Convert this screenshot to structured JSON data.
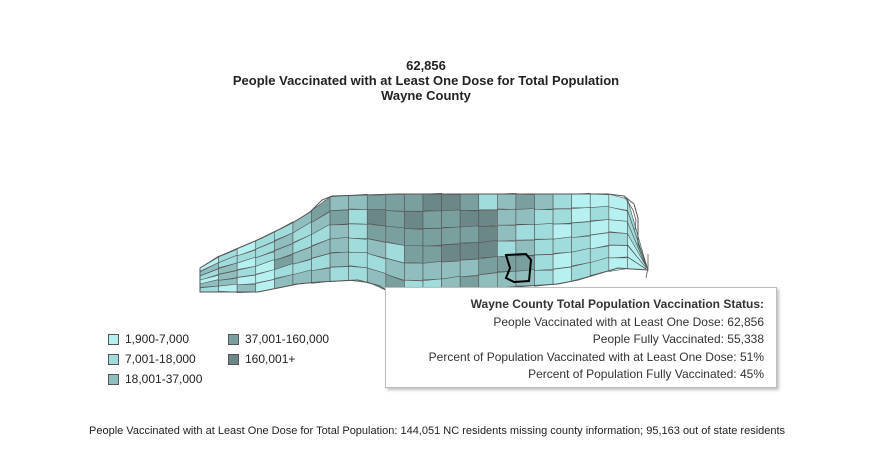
{
  "header": {
    "value": "62,856",
    "measure": "People Vaccinated with at Least One Dose for Total Population",
    "county": "Wayne County"
  },
  "legend": {
    "items": [
      {
        "label": "1,900-7,000",
        "color": "#b7f0f0"
      },
      {
        "label": "7,001-18,000",
        "color": "#a0dcdc"
      },
      {
        "label": "18,001-37,000",
        "color": "#90bdbd"
      },
      {
        "label": "37,001-160,000",
        "color": "#7a9f9f"
      },
      {
        "label": "160,001+",
        "color": "#6b8787"
      }
    ]
  },
  "tooltip": {
    "title": "Wayne County Total Population Vaccination Status:",
    "lines": [
      "People Vaccinated with at Least One Dose: 62,856",
      "People Fully Vaccinated: 55,338",
      "Percent of Population Vaccinated with at Least One Dose: 51%",
      "Percent of Population Fully Vaccinated: 45%"
    ]
  },
  "footnote": "People Vaccinated with at Least One Dose for Total Population:  144,051 NC residents missing county information; 95,163 out of state residents",
  "map": {
    "selected_county": "Wayne County",
    "border_color": "#555555",
    "highlight_color": "#000000"
  }
}
